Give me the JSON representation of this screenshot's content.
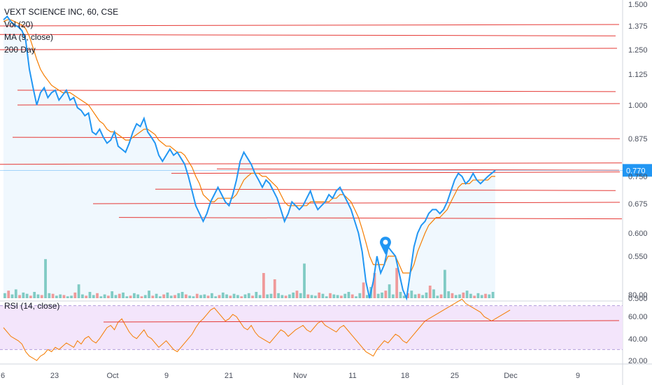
{
  "chart_title": "VEXT SCIENCE INC, 60, CSE",
  "indicators": {
    "volume": "Vol (20)",
    "ma": "MA (9, close)",
    "ma200": "200 Day",
    "rsi": "RSI (14, close)"
  },
  "colors": {
    "price_line": "#2196f3",
    "ma_line": "#f57c00",
    "levels": "#e53935",
    "vol_up": "#80cbc4",
    "vol_down": "#ef9a9a",
    "rsi_line": "#f57c00",
    "rsi_band": "#f3e5fb",
    "price_tag": "#2196f3",
    "balloon": "#2196f3"
  },
  "axis": {
    "price_ticks": [
      "1.500",
      "1.375",
      "1.250",
      "1.125",
      "1.000",
      "0.875",
      "0.750",
      "0.675",
      "0.600",
      "0.550",
      "0.500"
    ],
    "rsi_ticks": [
      "80.00",
      "60.00",
      "40.00",
      "20.00"
    ],
    "time_ticks": [
      "6",
      "23",
      "Oct",
      "9",
      "21",
      "Nov",
      "11",
      "18",
      "25",
      "Dec",
      "9"
    ],
    "last_price": "0.770"
  },
  "chart_data": {
    "type": "line",
    "series": [
      {
        "values": [
          1.41,
          1.43,
          1.4,
          1.38,
          1.37,
          1.35,
          1.3,
          1.15,
          1.07,
          1.0,
          1.05,
          1.07,
          1.03,
          1.05,
          1.06,
          1.02,
          1.04,
          1.06,
          1.02,
          1.03,
          0.99,
          0.98,
          0.96,
          0.97,
          0.9,
          0.89,
          0.91,
          0.88,
          0.86,
          0.87,
          0.9,
          0.85,
          0.84,
          0.83,
          0.86,
          0.9,
          0.93,
          0.92,
          0.95,
          0.9,
          0.88,
          0.86,
          0.82,
          0.8,
          0.82,
          0.84,
          0.82,
          0.83,
          0.81,
          0.79,
          0.75,
          0.71,
          0.67,
          0.65,
          0.63,
          0.65,
          0.68,
          0.7,
          0.72,
          0.7,
          0.68,
          0.67,
          0.7,
          0.74,
          0.8,
          0.83,
          0.81,
          0.79,
          0.76,
          0.74,
          0.72,
          0.74,
          0.73,
          0.71,
          0.69,
          0.66,
          0.63,
          0.65,
          0.68,
          0.67,
          0.66,
          0.67,
          0.69,
          0.71,
          0.68,
          0.66,
          0.67,
          0.68,
          0.7,
          0.69,
          0.71,
          0.72,
          0.7,
          0.68,
          0.66,
          0.63,
          0.6,
          0.56,
          0.52,
          0.5,
          0.52,
          0.55,
          0.53,
          0.54,
          0.57,
          0.56,
          0.55,
          0.53,
          0.51,
          0.5,
          0.53,
          0.57,
          0.6,
          0.62,
          0.63,
          0.65,
          0.66,
          0.66,
          0.65,
          0.66,
          0.68,
          0.71,
          0.74,
          0.76,
          0.75,
          0.73,
          0.74,
          0.76,
          0.74,
          0.73,
          0.74,
          0.75,
          0.76,
          0.77
        ]
      },
      {
        "values": [
          1.4,
          1.41,
          1.41,
          1.4,
          1.39,
          1.38,
          1.36,
          1.32,
          1.26,
          1.2,
          1.15,
          1.12,
          1.1,
          1.08,
          1.07,
          1.06,
          1.05,
          1.05,
          1.05,
          1.04,
          1.03,
          1.02,
          1.01,
          1.0,
          0.98,
          0.96,
          0.94,
          0.93,
          0.91,
          0.9,
          0.9,
          0.89,
          0.88,
          0.87,
          0.87,
          0.88,
          0.89,
          0.9,
          0.91,
          0.91,
          0.9,
          0.89,
          0.87,
          0.86,
          0.85,
          0.85,
          0.84,
          0.83,
          0.83,
          0.82,
          0.8,
          0.78,
          0.75,
          0.73,
          0.7,
          0.69,
          0.68,
          0.68,
          0.69,
          0.69,
          0.69,
          0.69,
          0.69,
          0.7,
          0.72,
          0.74,
          0.75,
          0.76,
          0.76,
          0.76,
          0.75,
          0.75,
          0.74,
          0.73,
          0.72,
          0.7,
          0.68,
          0.67,
          0.67,
          0.67,
          0.67,
          0.67,
          0.67,
          0.68,
          0.68,
          0.68,
          0.68,
          0.68,
          0.68,
          0.69,
          0.69,
          0.7,
          0.7,
          0.69,
          0.68,
          0.66,
          0.64,
          0.61,
          0.58,
          0.55,
          0.54,
          0.54,
          0.54,
          0.54,
          0.55,
          0.55,
          0.55,
          0.54,
          0.53,
          0.53,
          0.53,
          0.54,
          0.56,
          0.58,
          0.6,
          0.62,
          0.63,
          0.64,
          0.64,
          0.65,
          0.66,
          0.68,
          0.7,
          0.72,
          0.73,
          0.73,
          0.73,
          0.74,
          0.74,
          0.74,
          0.74,
          0.74,
          0.75,
          0.75
        ]
      },
      {
        "values": [
          50,
          46,
          42,
          40,
          38,
          35,
          28,
          24,
          22,
          20,
          24,
          26,
          30,
          28,
          32,
          30,
          33,
          36,
          34,
          32,
          38,
          35,
          40,
          42,
          38,
          36,
          40,
          45,
          50,
          52,
          48,
          55,
          58,
          52,
          46,
          42,
          40,
          44,
          48,
          42,
          40,
          36,
          32,
          35,
          38,
          34,
          30,
          28,
          32,
          36,
          40,
          44,
          50,
          55,
          58,
          62,
          66,
          68,
          64,
          60,
          56,
          58,
          62,
          60,
          55,
          50,
          48,
          52,
          46,
          42,
          40,
          38,
          36,
          40,
          44,
          48,
          46,
          42,
          45,
          48,
          50,
          52,
          48,
          46,
          50,
          54,
          56,
          52,
          50,
          48,
          46,
          50,
          52,
          48,
          44,
          40,
          36,
          32,
          28,
          26,
          24,
          30,
          34,
          38,
          36,
          40,
          44,
          42,
          38,
          36,
          40,
          44,
          48,
          52,
          56,
          58,
          60,
          62,
          64,
          66,
          68,
          70,
          72,
          74,
          76,
          72,
          70,
          68,
          66,
          64,
          60,
          58,
          56,
          58,
          60,
          62,
          64,
          66
        ]
      }
    ],
    "levels": [
      1.375,
      1.33,
      1.25,
      1.06,
      1.0,
      0.88,
      0.79,
      0.775,
      0.76,
      0.715,
      0.675,
      0.64
    ],
    "volume": [
      8,
      12,
      6,
      14,
      5,
      9,
      7,
      4,
      10,
      6,
      5,
      62,
      8,
      7,
      4,
      6,
      5,
      3,
      4,
      9,
      22,
      6,
      4,
      10,
      5,
      8,
      3,
      6,
      4,
      11,
      5,
      7,
      9,
      3,
      4,
      8,
      6,
      3,
      5,
      12,
      4,
      7,
      3,
      6,
      9,
      4,
      5,
      8,
      10,
      6,
      4,
      3,
      7,
      5,
      6,
      4,
      8,
      3,
      5,
      9,
      6,
      4,
      7,
      5,
      3,
      6,
      8,
      4,
      10,
      5,
      40,
      6,
      7,
      30,
      8,
      5,
      4,
      6,
      9,
      12,
      8,
      55,
      6,
      5,
      4,
      9,
      7,
      3,
      8,
      6,
      5,
      4,
      7,
      10,
      6,
      3,
      8,
      25,
      5,
      18,
      40,
      7,
      9,
      12,
      22,
      6,
      48,
      10,
      4,
      8,
      12,
      6,
      7,
      5,
      9,
      20,
      14,
      4,
      6,
      45,
      11,
      8,
      5,
      6,
      9,
      12,
      7,
      4,
      8,
      5,
      7,
      6,
      10
    ],
    "rsi_band": [
      30,
      70
    ]
  }
}
